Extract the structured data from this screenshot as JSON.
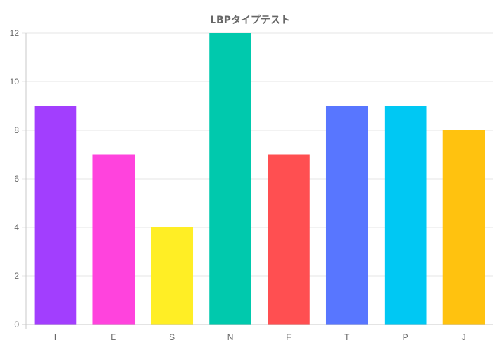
{
  "chart_data": {
    "type": "bar",
    "title": "LBPタイプテスト",
    "xlabel": "",
    "ylabel": "",
    "categories": [
      "I",
      "E",
      "S",
      "N",
      "F",
      "T",
      "P",
      "J"
    ],
    "values": [
      9,
      7,
      4,
      12,
      7,
      9,
      9,
      8
    ],
    "colors": [
      "#a23efe",
      "#ff43dd",
      "#ffee25",
      "#00c9ad",
      "#ff4f51",
      "#5876ff",
      "#00c8f3",
      "#ffc20f"
    ],
    "ylim": [
      0,
      12
    ],
    "yticks": [
      0,
      2,
      4,
      6,
      8,
      10,
      12
    ],
    "grid": true,
    "legend": "none"
  }
}
